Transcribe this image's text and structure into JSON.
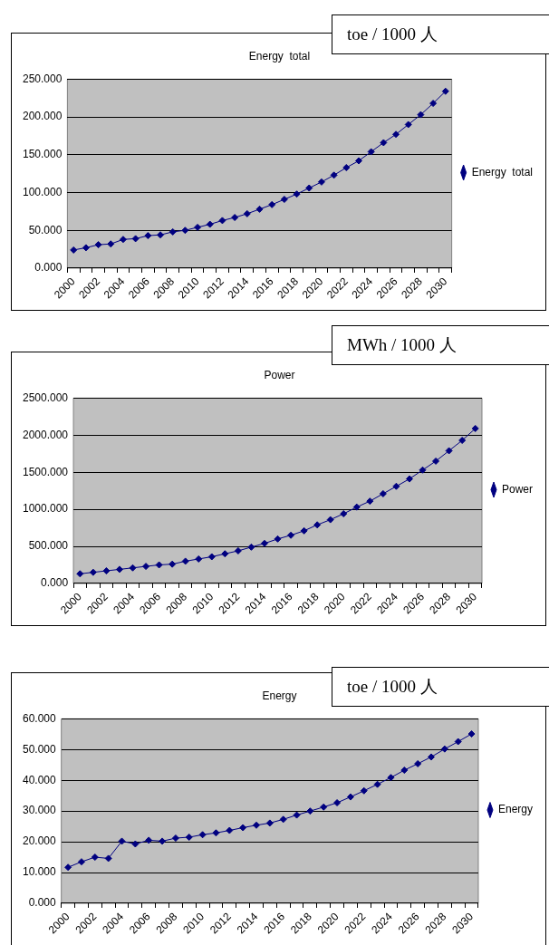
{
  "chart_data": [
    {
      "type": "line",
      "title": "Energy  total",
      "annotations": [
        "toe / 1000 人"
      ],
      "categories": [
        "2000",
        null,
        "2002",
        null,
        "2004",
        null,
        "2006",
        null,
        "2008",
        null,
        "2010",
        null,
        "2012",
        null,
        "2014",
        null,
        "2016",
        null,
        "2018",
        null,
        "2020",
        null,
        "2022",
        null,
        "2024",
        null,
        "2026",
        null,
        "2028",
        null,
        "2030"
      ],
      "series": [
        {
          "name": "Energy  total",
          "color": "#000080",
          "values": [
            24,
            27,
            31,
            32,
            38,
            39,
            43,
            44,
            48,
            50,
            54,
            58,
            63,
            67,
            72,
            78,
            84,
            91,
            98,
            106,
            114,
            123,
            133,
            142,
            154,
            166,
            177,
            190,
            203,
            218,
            234
          ]
        }
      ],
      "ylim": [
        0,
        250
      ],
      "yticks": [
        {
          "value": 0,
          "label": "0.000"
        },
        {
          "value": 50,
          "label": "50.000"
        },
        {
          "value": 100,
          "label": "100.000"
        },
        {
          "value": 150,
          "label": "150.000"
        },
        {
          "value": 200,
          "label": "200.000"
        },
        {
          "value": 250,
          "label": "250.000"
        }
      ],
      "grid": "y",
      "legend": "right",
      "marker": "diamond"
    },
    {
      "type": "line",
      "title": "Power",
      "annotations": [
        "MWh / 1000 人"
      ],
      "categories": [
        "2000",
        null,
        "2002",
        null,
        "2004",
        null,
        "2006",
        null,
        "2008",
        null,
        "2010",
        null,
        "2012",
        null,
        "2014",
        null,
        "2016",
        null,
        "2018",
        null,
        "2020",
        null,
        "2022",
        null,
        "2024",
        null,
        "2026",
        null,
        "2028",
        null,
        "2030"
      ],
      "series": [
        {
          "name": "Power",
          "color": "#000080",
          "values": [
            130,
            150,
            170,
            190,
            210,
            230,
            250,
            260,
            300,
            330,
            360,
            400,
            440,
            490,
            540,
            600,
            650,
            710,
            790,
            860,
            940,
            1030,
            1110,
            1210,
            1310,
            1410,
            1530,
            1650,
            1790,
            1930,
            2090
          ]
        }
      ],
      "ylim": [
        0,
        2500
      ],
      "yticks": [
        {
          "value": 0,
          "label": "0.000"
        },
        {
          "value": 500,
          "label": "500.000"
        },
        {
          "value": 1000,
          "label": "1000.000"
        },
        {
          "value": 1500,
          "label": "1500.000"
        },
        {
          "value": 2000,
          "label": "2000.000"
        },
        {
          "value": 2500,
          "label": "2500.000"
        }
      ],
      "grid": "y",
      "legend": "right",
      "marker": "diamond"
    },
    {
      "type": "line",
      "title": "Energy",
      "annotations": [
        "toe / 1000 人"
      ],
      "categories": [
        "2000",
        null,
        "2002",
        null,
        "2004",
        null,
        "2006",
        null,
        "2008",
        null,
        "2010",
        null,
        "2012",
        null,
        "2014",
        null,
        "2016",
        null,
        "2018",
        null,
        "2020",
        null,
        "2022",
        null,
        "2024",
        null,
        "2026",
        null,
        "2028",
        null,
        "2030"
      ],
      "series": [
        {
          "name": "Energy",
          "color": "#000080",
          "values": [
            11.7,
            13.5,
            15,
            14.6,
            20.2,
            19.3,
            20.5,
            20.2,
            21.2,
            21.5,
            22.3,
            22.9,
            23.7,
            24.6,
            25.4,
            26.1,
            27.3,
            28.7,
            30,
            31.3,
            32.7,
            34.6,
            36.6,
            38.7,
            40.9,
            43.3,
            45.4,
            47.6,
            50.2,
            52.6,
            55.1
          ]
        }
      ],
      "ylim": [
        0,
        60
      ],
      "yticks": [
        {
          "value": 0,
          "label": "0.000"
        },
        {
          "value": 10,
          "label": "10.000"
        },
        {
          "value": 20,
          "label": "20.000"
        },
        {
          "value": 30,
          "label": "30.000"
        },
        {
          "value": 40,
          "label": "40.000"
        },
        {
          "value": 50,
          "label": "50.000"
        },
        {
          "value": 60,
          "label": "60.000"
        }
      ],
      "grid": "y",
      "legend": "right",
      "marker": "diamond"
    }
  ]
}
